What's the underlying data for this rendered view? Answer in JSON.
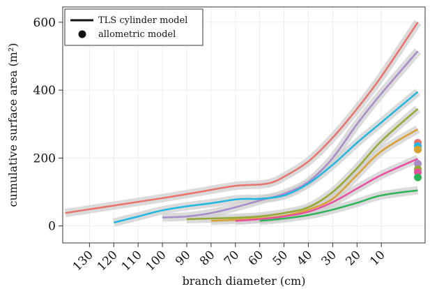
{
  "chart_data": {
    "type": "line",
    "xlabel": "branch diameter (cm)",
    "ylabel": "cumulative surface area (m²)",
    "x_reversed": true,
    "xlim": [
      141,
      -8
    ],
    "ylim": [
      -50,
      645
    ],
    "x_ticks": [
      130,
      120,
      110,
      100,
      90,
      80,
      70,
      60,
      50,
      40,
      30,
      20,
      10
    ],
    "y_ticks": [
      0,
      200,
      400,
      600
    ],
    "grid": true,
    "legend": {
      "placement": "top-left",
      "entries": [
        {
          "label": "TLS cylinder model",
          "marker": "line"
        },
        {
          "label": "allometric model",
          "marker": "point"
        }
      ]
    },
    "series": [
      {
        "color": "#e8736c",
        "band": true,
        "x": [
          140,
          120,
          100,
          85,
          70,
          60,
          55,
          50,
          40,
          30,
          20,
          10,
          -5
        ],
        "y": [
          38,
          60,
          82,
          100,
          118,
          122,
          128,
          145,
          190,
          260,
          345,
          440,
          600
        ],
        "allometric": 245
      },
      {
        "color": "#a98bc9",
        "band": false,
        "x": [
          100,
          90,
          80,
          70,
          60,
          50,
          40,
          30,
          20,
          10,
          -5
        ],
        "y": [
          25,
          28,
          38,
          55,
          75,
          95,
          130,
          200,
          300,
          390,
          515
        ],
        "allometric": 183
      },
      {
        "color": "#1fb7e0",
        "x": [
          120,
          110,
          100,
          90,
          80,
          70,
          65,
          60,
          50,
          40,
          30,
          20,
          10,
          -5
        ],
        "y": [
          10,
          28,
          46,
          58,
          67,
          78,
          80,
          80,
          90,
          125,
          180,
          245,
          305,
          395
        ],
        "allometric": 235
      },
      {
        "color": "#94a832",
        "x": [
          90,
          80,
          70,
          60,
          50,
          40,
          30,
          20,
          10,
          -5
        ],
        "y": [
          20,
          22,
          24,
          28,
          38,
          55,
          100,
          170,
          250,
          345
        ],
        "allometric": 167
      },
      {
        "color": "#d9a12f",
        "x": [
          80,
          70,
          60,
          50,
          40,
          30,
          20,
          10,
          -5
        ],
        "y": [
          15,
          18,
          22,
          30,
          48,
          80,
          150,
          220,
          285
        ],
        "allometric": 225
      },
      {
        "color": "#e94fa0",
        "x": [
          70,
          60,
          50,
          40,
          30,
          20,
          10,
          -5
        ],
        "y": [
          15,
          20,
          28,
          42,
          70,
          110,
          150,
          198
        ],
        "allometric": 158
      },
      {
        "color": "#2fb35a",
        "x": [
          60,
          50,
          40,
          30,
          20,
          10,
          -5
        ],
        "y": [
          15,
          22,
          32,
          48,
          68,
          90,
          105
        ],
        "allometric": 143
      }
    ]
  }
}
